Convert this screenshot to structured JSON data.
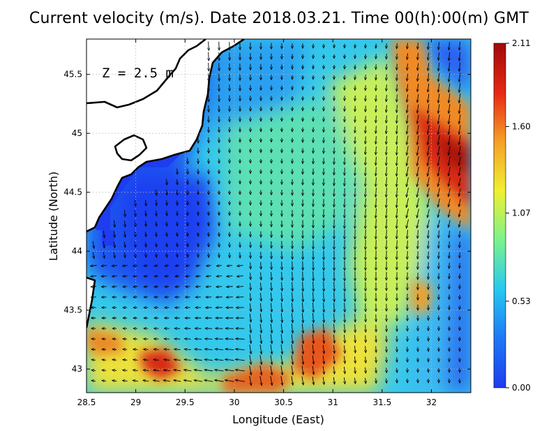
{
  "title": "Current velocity (m/s). Date 2018.03.21. Time 00(h):00(m) GMT",
  "depth_label": "Z = 2.5 m",
  "xlabel": "Longitude (East)",
  "ylabel": "Latitude (North)",
  "x_ticks": [
    "28.5",
    "29",
    "29.5",
    "30",
    "30.5",
    "31",
    "31.5",
    "32"
  ],
  "y_ticks": [
    "43",
    "43.5",
    "44",
    "44.5",
    "45",
    "45.5"
  ],
  "colorbar": {
    "ticks": [
      "0.00",
      "0.53",
      "1.07",
      "1.60",
      "2.11"
    ],
    "stops": [
      "#1e3cf0",
      "#1e78f5",
      "#28c8f0",
      "#7cf28c",
      "#f0f032",
      "#f5a028",
      "#e62814",
      "#a00a0a"
    ]
  },
  "chart_data": {
    "type": "heatmap",
    "title": "Current velocity (m/s). Date 2018.03.21. Time 00(h):00(m) GMT",
    "xlabel": "Longitude (East)",
    "ylabel": "Latitude (North)",
    "xlim": [
      28.5,
      32.4
    ],
    "ylim": [
      42.8,
      45.8
    ],
    "clim": [
      0.0,
      2.11
    ],
    "units": "m/s",
    "grid": true
  }
}
